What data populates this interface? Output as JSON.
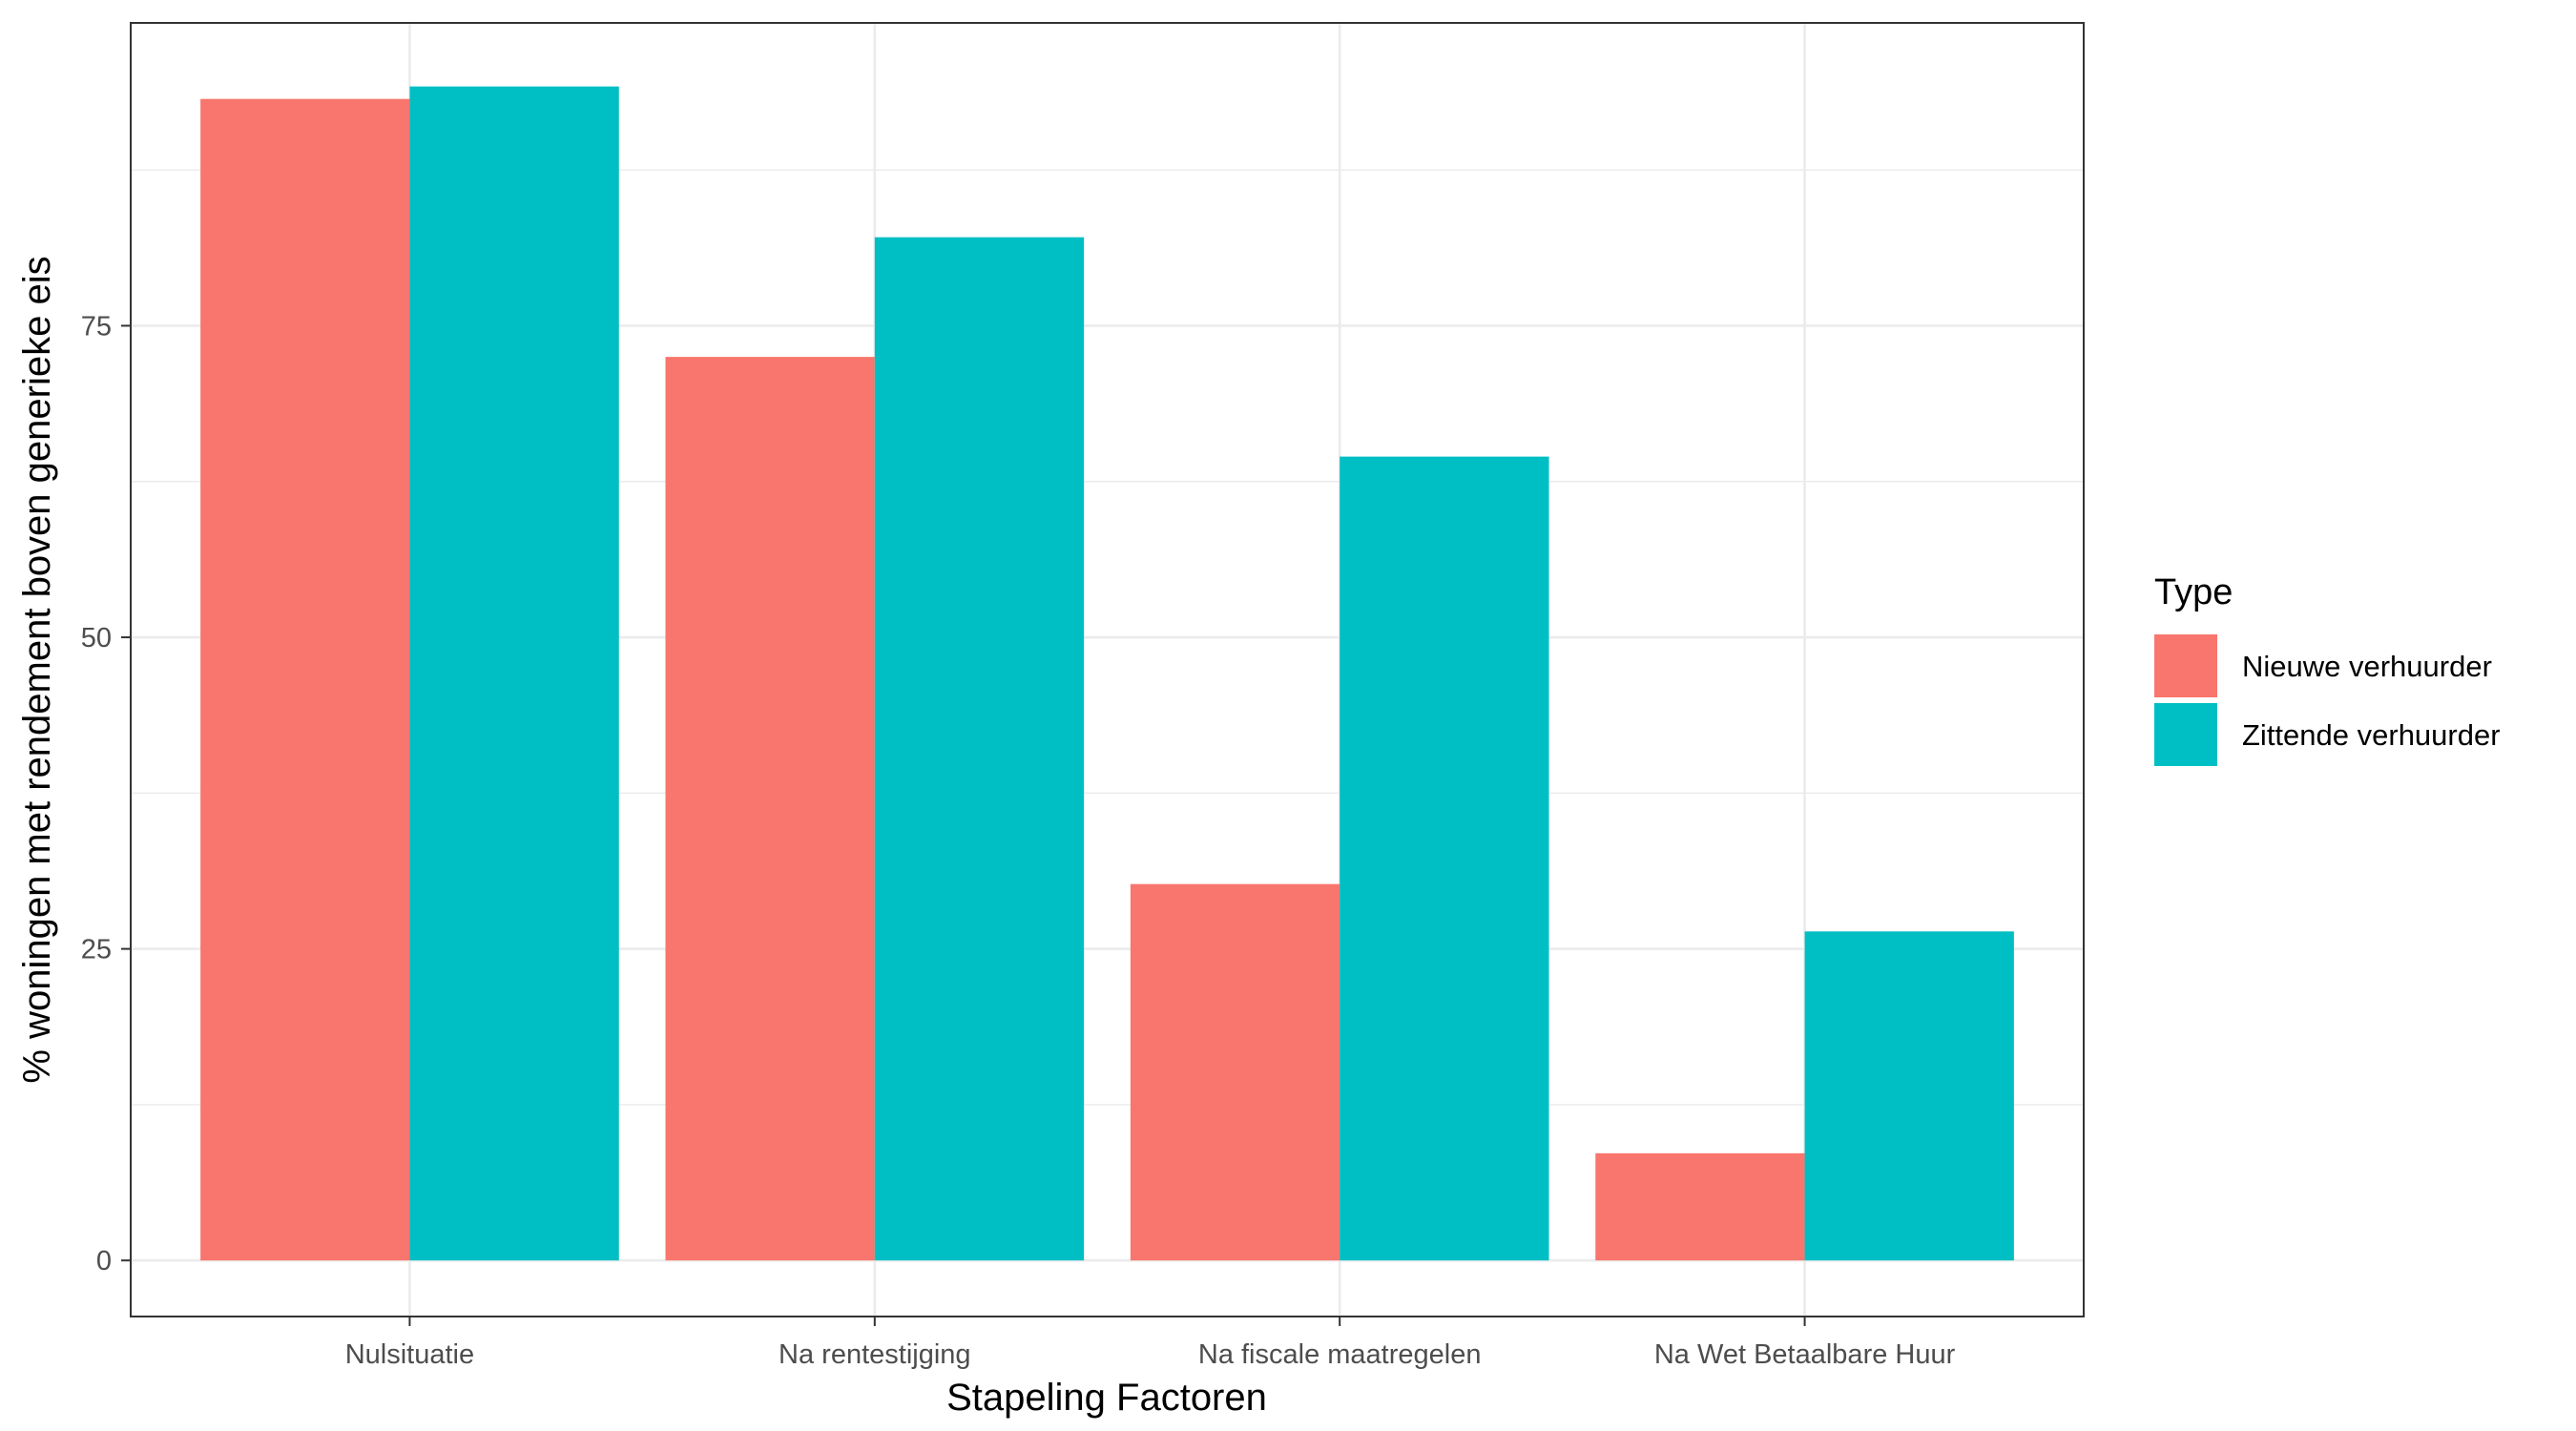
{
  "chart_data": {
    "type": "bar",
    "title": "",
    "xlabel": "Stapeling Factoren",
    "ylabel": "% woningen met rendement boven generieke eis",
    "categories": [
      "Nulsituatie",
      "Na rentestijging",
      "Na fiscale maatregelen",
      "Na Wet Betaalbare Huur"
    ],
    "series": [
      {
        "name": "Nieuwe verhuurder",
        "color": "#F8766D",
        "values": [
          93.2,
          72.5,
          30.2,
          8.6
        ]
      },
      {
        "name": "Zittende verhuurder",
        "color": "#00BFC4",
        "values": [
          94.2,
          82.1,
          64.5,
          26.4
        ]
      }
    ],
    "ylim": [
      -4.5,
      99.3
    ],
    "yticks": [
      0,
      25,
      50,
      75
    ],
    "grid": true,
    "legend": {
      "title": "Type",
      "placement": "right"
    }
  }
}
